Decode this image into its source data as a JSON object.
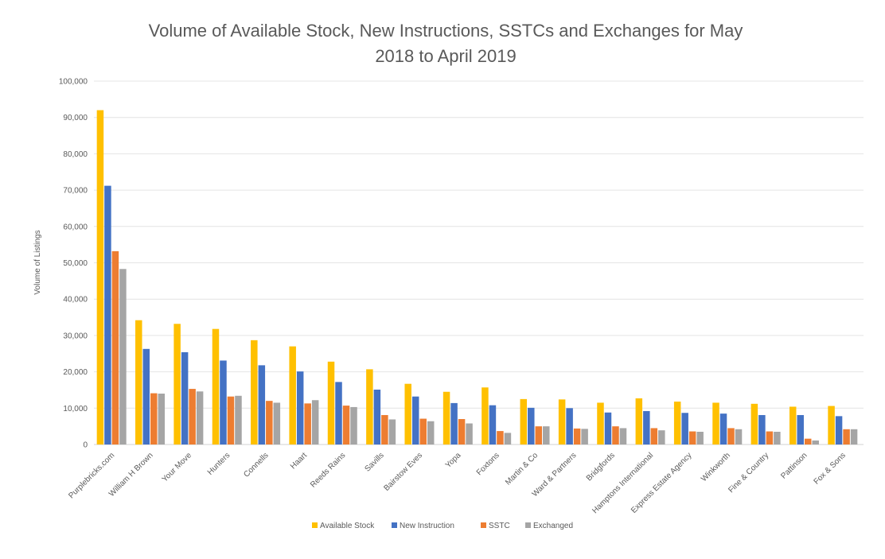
{
  "chart_data": {
    "type": "bar",
    "title_line1": "Volume of Available Stock, New Instructions, SSTCs and Exchanges for May",
    "title_line2": "2018 to April 2019",
    "xlabel": "",
    "ylabel": "Volume of Listings",
    "ylim": [
      0,
      100000
    ],
    "yticks": [
      "0",
      "10,000",
      "20,000",
      "30,000",
      "40,000",
      "50,000",
      "60,000",
      "70,000",
      "80,000",
      "90,000",
      "100,000"
    ],
    "grid": true,
    "legend_position": "bottom",
    "categories": [
      "Purplebricks.com",
      "William H Brown",
      "Your Move",
      "Hunters",
      "Connells",
      "Haart",
      "Reeds Rains",
      "Savills",
      "Bairstow Eves",
      "Yopa",
      "Foxtons",
      "Martin & Co",
      "Ward & Partners",
      "Bridgfords",
      "Hamptons International",
      "Express Estate Agency",
      "Winkworth",
      "Fine & Country",
      "Pattinson",
      "Fox & Sons"
    ],
    "series": [
      {
        "name": "Available Stock",
        "color": "#FFC000",
        "values": [
          92000,
          34200,
          33200,
          31800,
          28700,
          27000,
          22800,
          20700,
          16700,
          14500,
          15700,
          12500,
          12400,
          11500,
          12700,
          11800,
          11500,
          11200,
          10400,
          10600
        ]
      },
      {
        "name": "New Instruction",
        "color": "#4472C4",
        "values": [
          71200,
          26300,
          25400,
          23100,
          21800,
          20100,
          17200,
          15100,
          13200,
          11400,
          10800,
          10100,
          10000,
          8800,
          9200,
          8700,
          8500,
          8100,
          8100,
          7800
        ]
      },
      {
        "name": "SSTC",
        "color": "#ED7D31",
        "values": [
          53200,
          14100,
          15300,
          13200,
          12000,
          11300,
          10700,
          8100,
          7100,
          7000,
          3700,
          5000,
          4400,
          5000,
          4500,
          3600,
          4500,
          3600,
          1600,
          4200
        ]
      },
      {
        "name": "Exchanged",
        "color": "#A5A5A5",
        "values": [
          48300,
          14000,
          14600,
          13400,
          11500,
          12200,
          10300,
          6900,
          6400,
          5800,
          3200,
          5000,
          4300,
          4500,
          3900,
          3500,
          4200,
          3500,
          1100,
          4200
        ]
      }
    ]
  }
}
